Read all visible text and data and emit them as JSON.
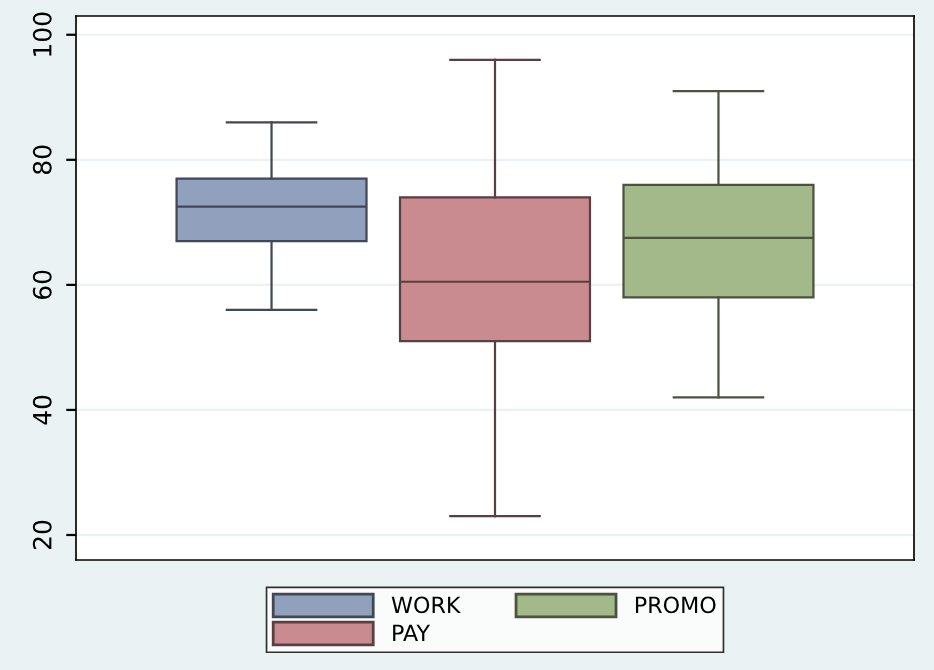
{
  "chart_data": {
    "type": "box",
    "categories": [
      null
    ],
    "ylim": [
      16,
      103
    ],
    "yticks": [
      20,
      40,
      60,
      80,
      100
    ],
    "grid": "y",
    "legend": "bottom",
    "series": [
      {
        "name": "WORK",
        "color": "#90a0bd",
        "boxes": [
          {
            "low": 56,
            "q1": 67,
            "median": 72.5,
            "q3": 77,
            "high": 86
          }
        ]
      },
      {
        "name": "PAY",
        "color": "#c98b8f",
        "boxes": [
          {
            "low": 23,
            "q1": 51,
            "median": 60.5,
            "q3": 74,
            "high": 96
          }
        ]
      },
      {
        "name": "PROMO",
        "color": "#a3b98a",
        "boxes": [
          {
            "low": 42,
            "q1": 58,
            "median": 67.5,
            "q3": 76,
            "high": 91
          }
        ]
      }
    ]
  }
}
